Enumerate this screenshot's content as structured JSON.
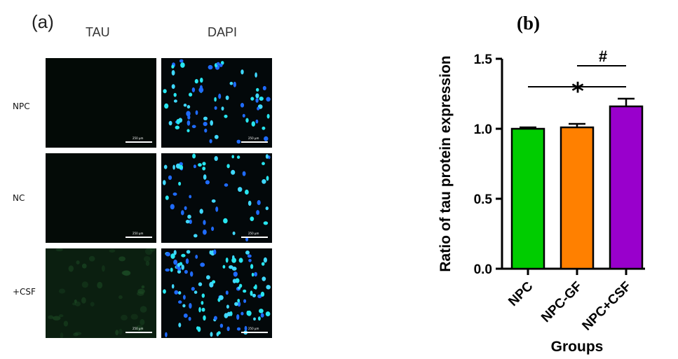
{
  "panel_a": {
    "label": "(a)",
    "columns": [
      "TAU",
      "DAPI"
    ],
    "rows": [
      "NPC",
      "NC",
      "+CSF"
    ],
    "scale_text": "250 µm",
    "tau_colors": [
      "#030a06",
      "#040b07",
      "#0b1f10"
    ],
    "nucleus_colors": [
      "#27e6f0",
      "#1f6bff",
      "#3fd8ff"
    ]
  },
  "panel_b": {
    "label": "(b)"
  },
  "chart_data": {
    "type": "bar",
    "categories": [
      "NPC",
      "NPC-GF",
      "NPC+CSF"
    ],
    "values": [
      1.0,
      1.01,
      1.16
    ],
    "errors": [
      0.01,
      0.025,
      0.055
    ],
    "colors": [
      "#00cc00",
      "#ff8000",
      "#9900cc"
    ],
    "xlabel": "Groups",
    "ylabel": "Ratio of tau protein expression",
    "ylim": [
      0,
      1.5
    ],
    "yticks": [
      "0.0",
      "0.5",
      "1.0",
      "1.5"
    ],
    "annotations": [
      {
        "symbol": "*",
        "from": "NPC",
        "to": "NPC+CSF"
      },
      {
        "symbol": "#",
        "from": "NPC-GF",
        "to": "NPC+CSF"
      }
    ],
    "grid": false,
    "legend": "none"
  }
}
